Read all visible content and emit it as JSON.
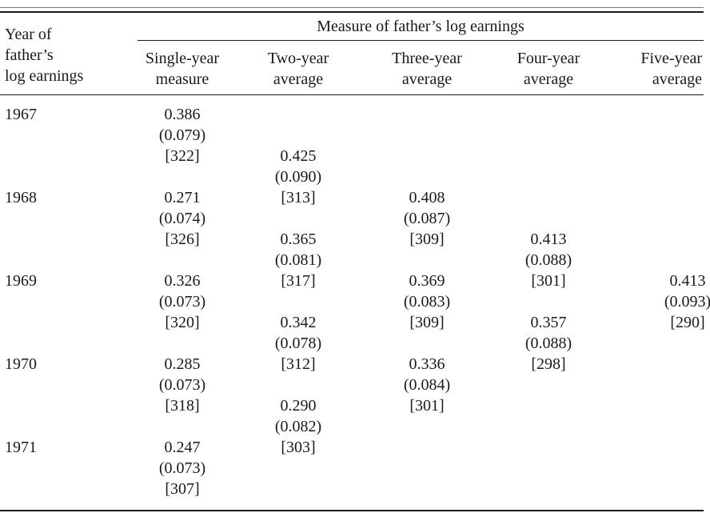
{
  "stub_header": [
    "Year of",
    "father’s",
    "log earnings"
  ],
  "super_header": "Measure of father’s log earnings",
  "columns": [
    {
      "key": "single",
      "lines": [
        "Single-year",
        "measure"
      ]
    },
    {
      "key": "two",
      "lines": [
        "Two-year",
        "average"
      ]
    },
    {
      "key": "three",
      "lines": [
        "Three-year",
        "average"
      ]
    },
    {
      "key": "four",
      "lines": [
        "Four-year",
        "average"
      ]
    },
    {
      "key": "five",
      "lines": [
        "Five-year",
        "average"
      ]
    }
  ],
  "years": [
    "1967",
    "1968",
    "1969",
    "1970",
    "1971"
  ],
  "cells": [
    {
      "col": "single",
      "slot": 0,
      "lines": [
        "0.386",
        "(0.079)",
        "[322]"
      ]
    },
    {
      "col": "single",
      "slot": 4,
      "lines": [
        "0.271",
        "(0.074)",
        "[326]"
      ]
    },
    {
      "col": "single",
      "slot": 8,
      "lines": [
        "0.326",
        "(0.073)",
        "[320]"
      ]
    },
    {
      "col": "single",
      "slot": 12,
      "lines": [
        "0.285",
        "(0.073)",
        "[318]"
      ]
    },
    {
      "col": "single",
      "slot": 16,
      "lines": [
        "0.247",
        "(0.073)",
        "[307]"
      ]
    },
    {
      "col": "two",
      "slot": 2,
      "lines": [
        "0.425",
        "(0.090)",
        "[313]"
      ]
    },
    {
      "col": "two",
      "slot": 6,
      "lines": [
        "0.365",
        "(0.081)",
        "[317]"
      ]
    },
    {
      "col": "two",
      "slot": 10,
      "lines": [
        "0.342",
        "(0.078)",
        "[312]"
      ]
    },
    {
      "col": "two",
      "slot": 14,
      "lines": [
        "0.290",
        "(0.082)",
        "[303]"
      ]
    },
    {
      "col": "three",
      "slot": 4,
      "lines": [
        "0.408",
        "(0.087)",
        "[309]"
      ]
    },
    {
      "col": "three",
      "slot": 8,
      "lines": [
        "0.369",
        "(0.083)",
        "[309]"
      ]
    },
    {
      "col": "three",
      "slot": 12,
      "lines": [
        "0.336",
        "(0.084)",
        "[301]"
      ]
    },
    {
      "col": "four",
      "slot": 6,
      "lines": [
        "0.413",
        "(0.088)",
        "[301]"
      ]
    },
    {
      "col": "four",
      "slot": 10,
      "lines": [
        "0.357",
        "(0.088)",
        "[298]"
      ]
    },
    {
      "col": "five",
      "slot": 8,
      "lines": [
        "0.413",
        "(0.093)",
        "[290]"
      ]
    }
  ]
}
